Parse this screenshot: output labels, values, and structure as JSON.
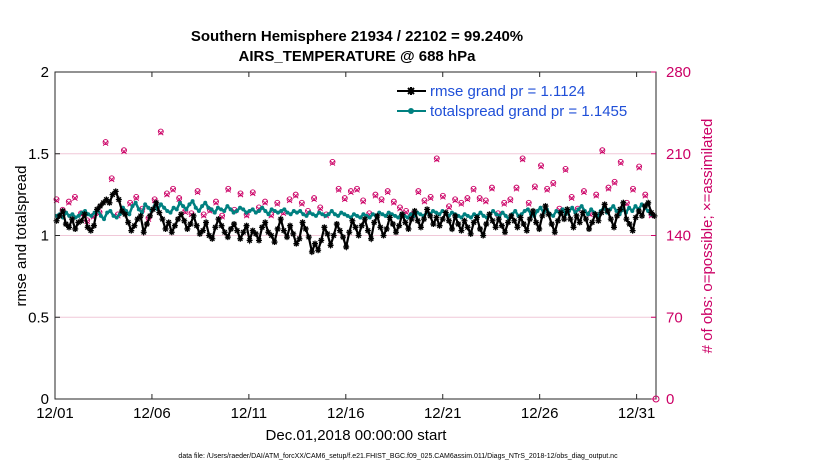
{
  "chart_data": {
    "type": "line",
    "title": "Southern Hemisphere 21934 / 22102 = 99.240%",
    "subtitle": "AIRS_TEMPERATURE @ 688 hPa",
    "xlabel": "Dec.01,2018 00:00:00 start",
    "ylabel_left": "rmse and totalspread",
    "ylabel_right": "# of obs: o=possible; ×=assimilated",
    "xlim": [
      0,
      31
    ],
    "ylim_left": [
      0,
      2
    ],
    "ylim_right": [
      0,
      280
    ],
    "x_ticks": [
      0,
      5,
      10,
      15,
      20,
      25,
      30
    ],
    "x_tick_labels": [
      "12/01",
      "12/06",
      "12/11",
      "12/16",
      "12/21",
      "12/26",
      "12/31"
    ],
    "y_ticks_left": [
      "0",
      "0.5",
      "1",
      "1.5",
      "2"
    ],
    "y_ticks_right": [
      "0",
      "70",
      "140",
      "210",
      "280"
    ],
    "footer": "data file: /Users/raeder/DAI/ATM_forcXX/CAM6_setup/f.e21.FHIST_BGC.f09_025.CAM6assim.011/Diags_NTrS_2018-12/obs_diag_output.nc",
    "legend_position": "top-right",
    "legend": [
      "rmse grand pr = 1.1124",
      "totalspread grand pr = 1.1455"
    ],
    "colors": {
      "rmse": "#000000",
      "spread": "#008080",
      "obs": "#cc0066"
    },
    "series": [
      {
        "name": "rmse",
        "axis": "left",
        "marker": "star",
        "values": [
          1.09,
          1.12,
          1.15,
          1.07,
          1.05,
          1.1,
          1.04,
          1.08,
          1.09,
          1.13,
          1.05,
          1.03,
          1.06,
          1.16,
          1.18,
          1.2,
          1.22,
          1.2,
          1.25,
          1.27,
          1.22,
          1.15,
          1.13,
          1.08,
          1.03,
          1.06,
          1.1,
          1.12,
          1.02,
          1.07,
          1.12,
          1.16,
          1.2,
          1.14,
          1.1,
          1.04,
          1.08,
          1.02,
          1.06,
          1.1,
          1.13,
          1.09,
          1.04,
          1.07,
          1.12,
          1.06,
          1.01,
          1.03,
          1.08,
          1.0,
          0.98,
          1.05,
          1.1,
          1.06,
          1.02,
          0.99,
          1.04,
          1.07,
          1.03,
          0.98,
          1.02,
          1.06,
          0.97,
          1.03,
          1.01,
          0.97,
          1.05,
          1.08,
          1.02,
          1.0,
          0.96,
          1.04,
          1.1,
          1.03,
          0.99,
          1.06,
          1.01,
          0.95,
          0.98,
          1.08,
          1.04,
          0.99,
          0.9,
          0.95,
          0.91,
          0.97,
          1.05,
          1.01,
          0.94,
          1.0,
          1.07,
          1.03,
          0.99,
          0.93,
          1.02,
          1.09,
          1.05,
          1.0,
          1.06,
          1.1,
          1.03,
          0.98,
          1.08,
          1.12,
          1.05,
          1.0,
          1.04,
          1.11,
          1.07,
          1.02,
          1.06,
          1.13,
          1.08,
          1.04,
          1.1,
          1.15,
          1.09,
          1.05,
          1.1,
          1.16,
          1.12,
          1.07,
          1.11,
          1.06,
          1.1,
          1.14,
          1.09,
          1.04,
          1.12,
          1.07,
          1.03,
          1.09,
          1.05,
          1.01,
          1.08,
          1.11,
          1.04,
          1.0,
          1.07,
          1.13,
          1.09,
          1.05,
          1.1,
          1.06,
          1.02,
          1.08,
          1.12,
          1.09,
          1.05,
          1.11,
          1.07,
          1.03,
          1.1,
          1.15,
          1.08,
          1.04,
          1.12,
          1.18,
          1.13,
          1.07,
          1.02,
          1.09,
          1.14,
          1.1,
          1.16,
          1.1,
          1.05,
          1.12,
          1.08,
          1.14,
          1.1,
          1.04,
          1.08,
          1.13,
          1.09,
          1.14,
          1.19,
          1.15,
          1.1,
          1.05,
          1.12,
          1.16,
          1.2,
          1.1,
          1.07,
          1.03,
          1.11,
          1.15,
          1.12,
          1.18,
          1.2,
          1.14,
          1.12
        ]
      },
      {
        "name": "totalspread",
        "axis": "left",
        "marker": "circle",
        "values": [
          1.12,
          1.13,
          1.11,
          1.14,
          1.12,
          1.13,
          1.11,
          1.12,
          1.14,
          1.15,
          1.13,
          1.12,
          1.14,
          1.16,
          1.12,
          1.1,
          1.14,
          1.15,
          1.12,
          1.11,
          1.13,
          1.17,
          1.15,
          1.13,
          1.18,
          1.2,
          1.16,
          1.14,
          1.19,
          1.17,
          1.15,
          1.18,
          1.16,
          1.19,
          1.17,
          1.15,
          1.14,
          1.17,
          1.16,
          1.2,
          1.18,
          1.16,
          1.19,
          1.21,
          1.17,
          1.15,
          1.18,
          1.2,
          1.17,
          1.16,
          1.14,
          1.17,
          1.16,
          1.15,
          1.18,
          1.16,
          1.14,
          1.15,
          1.17,
          1.16,
          1.14,
          1.15,
          1.16,
          1.14,
          1.15,
          1.17,
          1.15,
          1.13,
          1.16,
          1.15,
          1.14,
          1.15,
          1.16,
          1.14,
          1.13,
          1.15,
          1.14,
          1.15,
          1.13,
          1.12,
          1.14,
          1.13,
          1.12,
          1.14,
          1.13,
          1.12,
          1.13,
          1.15,
          1.13,
          1.12,
          1.14,
          1.13,
          1.12,
          1.11,
          1.13,
          1.12,
          1.11,
          1.13,
          1.12,
          1.11,
          1.13,
          1.12,
          1.14,
          1.13,
          1.12,
          1.14,
          1.13,
          1.12,
          1.11,
          1.13,
          1.12,
          1.11,
          1.13,
          1.12,
          1.14,
          1.13,
          1.12,
          1.14,
          1.13,
          1.15,
          1.14,
          1.13,
          1.15,
          1.14,
          1.12,
          1.14,
          1.13,
          1.12,
          1.11,
          1.13,
          1.12,
          1.11,
          1.13,
          1.12,
          1.14,
          1.12,
          1.11,
          1.13,
          1.15,
          1.13,
          1.12,
          1.14,
          1.12,
          1.1,
          1.13,
          1.15,
          1.12,
          1.13,
          1.15,
          1.16,
          1.13,
          1.12,
          1.15,
          1.17,
          1.14,
          1.16,
          1.13,
          1.12,
          1.15,
          1.14,
          1.16,
          1.13,
          1.15,
          1.17,
          1.14,
          1.16,
          1.18,
          1.15,
          1.13,
          1.16,
          1.14,
          1.12,
          1.15,
          1.17,
          1.14,
          1.16,
          1.18,
          1.15,
          1.13,
          1.16,
          1.14,
          1.17,
          1.15,
          1.18,
          1.16,
          1.19,
          1.17,
          1.15,
          1.13,
          1.12
        ]
      },
      {
        "name": "obs possible",
        "axis": "right",
        "marker": "o",
        "values": [
          171,
          150,
          162,
          152,
          169,
          148,
          173,
          165,
          159,
          175,
          153,
          162,
          157,
          200,
          160,
          150,
          220,
          172,
          189,
          180,
          158,
          166,
          213,
          153,
          168,
          160,
          173,
          142,
          163,
          179,
          155,
          166,
          171,
          156,
          229,
          168,
          176,
          152,
          180,
          166,
          172,
          149,
          161,
          176,
          159,
          168,
          178,
          165,
          158,
          172,
          162,
          181,
          169,
          174,
          157,
          166,
          180,
          171,
          162,
          206,
          176,
          168,
          158,
          183,
          177,
          172,
          164,
          178,
          169,
          173,
          158,
          207,
          168,
          174,
          160,
          179,
          171,
          162,
          175,
          165,
          168,
          176,
          161,
          167,
          172,
          95,
          164,
          171,
          158,
          167,
          203,
          174,
          180,
          162,
          172,
          163,
          178,
          168,
          180,
          181,
          170,
          165,
          159,
          184,
          175,
          166,
          171,
          162,
          178,
          183,
          169,
          175,
          164,
          173,
          161,
          177,
          158,
          167,
          178,
          211,
          170,
          162,
          173,
          167,
          206,
          177,
          174,
          182,
          165,
          163,
          171,
          177,
          168,
          158,
          172,
          176,
          180,
          163,
          172,
          158,
          170,
          186,
          181,
          165,
          159,
          175,
          168,
          204,
          171,
          178,
          181,
          192,
          206,
          166,
          168,
          175,
          182,
          168,
          200,
          164,
          180,
          176,
          185,
          207,
          163,
          178,
          197,
          186,
          173,
          207,
          163,
          166,
          178,
          171,
          159,
          184,
          175,
          166,
          213,
          176,
          181,
          187,
          186,
          184,
          203,
          193,
          168,
          171,
          180,
          167,
          199,
          185,
          175,
          183,
          158,
          165
        ]
      },
      {
        "name": "obs assimilated",
        "axis": "right",
        "marker": "x",
        "values": [
          170,
          149,
          161,
          151,
          168,
          147,
          172,
          164,
          158,
          174,
          152,
          161,
          156,
          199,
          159,
          149,
          219,
          171,
          188,
          179,
          157,
          165,
          212,
          152,
          167,
          159,
          172,
          141,
          162,
          178,
          154,
          165,
          170,
          155,
          228,
          167,
          175,
          151,
          179,
          165,
          171,
          148,
          160,
          175,
          158,
          167,
          177,
          164,
          157,
          171,
          161,
          180,
          168,
          173,
          156,
          165,
          179,
          170,
          161,
          205,
          175,
          167,
          157,
          182,
          176,
          171,
          163,
          177,
          168,
          172,
          157,
          206,
          167,
          173,
          159,
          178,
          170,
          161,
          174,
          164,
          167,
          175,
          160,
          166,
          171,
          94,
          163,
          170,
          157,
          166,
          202,
          173,
          179,
          161,
          171,
          162,
          177,
          167,
          179,
          180,
          169,
          164,
          158,
          183,
          174,
          165,
          170,
          161,
          177,
          182,
          168,
          174,
          163,
          172,
          160,
          176,
          157,
          166,
          177,
          210,
          169,
          161,
          172,
          166,
          205,
          176,
          173,
          181,
          164,
          162,
          170,
          176,
          167,
          157,
          171,
          175,
          179,
          162,
          171,
          157,
          169,
          185,
          180,
          164,
          158,
          174,
          167,
          203,
          170,
          177,
          180,
          191,
          205,
          165,
          167,
          174,
          181,
          167,
          199,
          163,
          179,
          175,
          184,
          206,
          162,
          177,
          196,
          185,
          172,
          206,
          162,
          165,
          177,
          170,
          158,
          183,
          174,
          165,
          212,
          175,
          180,
          186,
          185,
          183,
          202,
          192,
          167,
          170,
          179,
          166,
          198,
          184,
          174,
          182,
          157,
          164
        ]
      }
    ]
  }
}
